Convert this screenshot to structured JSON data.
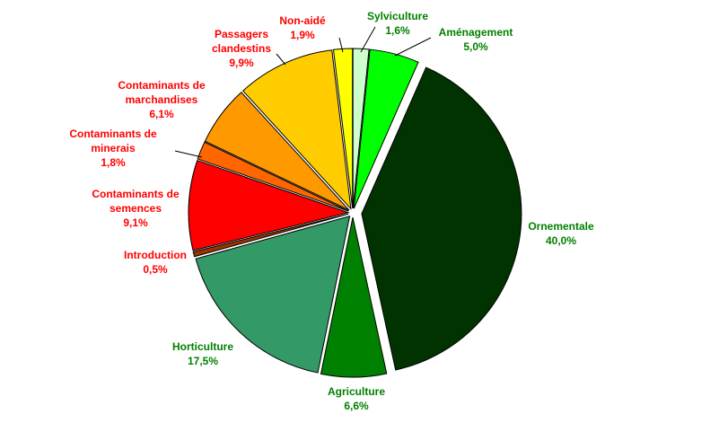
{
  "chart_data": {
    "type": "pie",
    "categories": [
      "Sylviculture",
      "Aménagement",
      "Ornementale",
      "Agriculture",
      "Horticulture",
      "Introduction",
      "Contaminants de semences",
      "Contaminants de minerais",
      "Contaminants de marchandises",
      "Passagers clandestins",
      "Non-aidé"
    ],
    "values": [
      1.6,
      5.0,
      40.0,
      6.6,
      17.5,
      0.5,
      9.1,
      1.8,
      6.1,
      9.9,
      1.9
    ],
    "value_labels": [
      "1,6%",
      "5,0%",
      "40,0%",
      "6,6%",
      "17,5%",
      "0,5%",
      "9,1%",
      "1,8%",
      "6,1%",
      "9,9%",
      "1,9%"
    ],
    "colors": [
      "#ccffcc",
      "#00ff00",
      "#003300",
      "#008000",
      "#339966",
      "#993300",
      "#ff0000",
      "#ff6600",
      "#ff9900",
      "#ffcc00",
      "#ffff00"
    ],
    "label_colors": [
      "#008000",
      "#008000",
      "#008000",
      "#008000",
      "#008000",
      "#ff0000",
      "#ff0000",
      "#ff0000",
      "#ff0000",
      "#ff0000",
      "#ff0000"
    ]
  }
}
